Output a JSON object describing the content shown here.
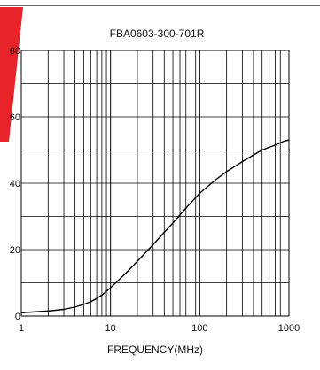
{
  "chart_data": {
    "type": "line",
    "title": "FBA0603-300-701R",
    "xlabel": "FREQUENCY(MHz)",
    "ylabel": "",
    "xscale": "log",
    "xlim": [
      1,
      1000
    ],
    "ylim": [
      0,
      80
    ],
    "grid": true,
    "x_tick_labels": [
      "1",
      "10",
      "100",
      "1000"
    ],
    "y_tick_labels": [
      "0",
      "20",
      "40",
      "60",
      "80"
    ],
    "series": [
      {
        "values_x": [
          1,
          2,
          3,
          4,
          5,
          6,
          7,
          8,
          10,
          15,
          20,
          30,
          40,
          50,
          70,
          100,
          150,
          200,
          300,
          400,
          500,
          700,
          900,
          1000
        ],
        "values_y": [
          1,
          1.5,
          2,
          2.7,
          3.5,
          4.3,
          5.3,
          6.3,
          8.5,
          13,
          16.5,
          21.5,
          25.2,
          28,
          32.5,
          37,
          41,
          43.5,
          46.5,
          48.5,
          50,
          51.5,
          52.8,
          53
        ]
      }
    ]
  },
  "colors": {
    "line": "#000000",
    "grid": "#000000",
    "accent_flag": "#e8232a"
  }
}
